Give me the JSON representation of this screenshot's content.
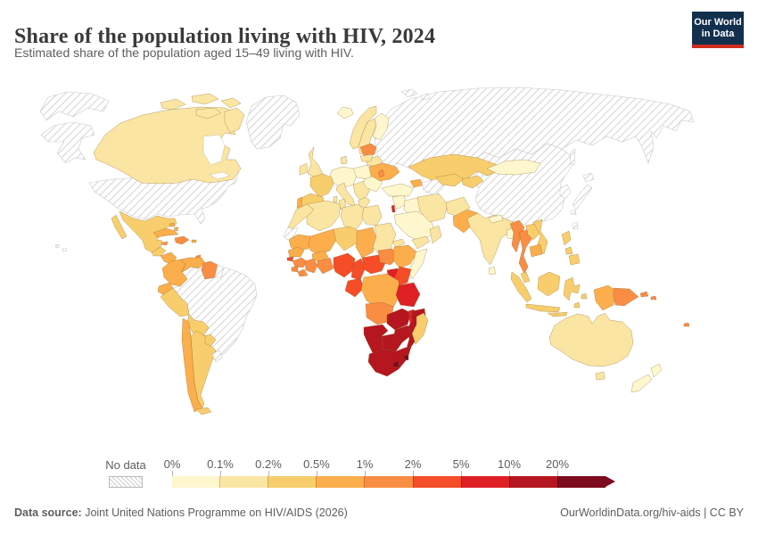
{
  "header": {
    "title": "Share of the population living with HIV, 2024",
    "subtitle": "Estimated share of the population aged 15–49 living with HIV."
  },
  "logo": {
    "line1": "Our World",
    "line2": "in Data",
    "bg": "#12304e",
    "bar": "#d02b1f"
  },
  "legend": {
    "no_data_label": "No data",
    "tick_labels": [
      "0%",
      "0.1%",
      "0.2%",
      "0.5%",
      "1%",
      "2%",
      "5%",
      "10%",
      "20%"
    ]
  },
  "footer": {
    "source_label": "Data source:",
    "source_text": " Joint United Nations Programme on HIV/AIDS (2026)",
    "right_text": "OurWorldinData.org/hiv-aids | CC BY"
  },
  "chart_data": {
    "type": "heatmap",
    "subtype": "world-choropleth-map",
    "title": "Share of the population living with HIV, 2024",
    "unit": "% of population aged 15-49",
    "legend_position": "bottom",
    "bin_edges_labels": [
      "0%",
      "0.1%",
      "0.2%",
      "0.5%",
      "1%",
      "2%",
      "5%",
      "10%",
      "20%"
    ],
    "bucket_ranges": {
      "b0": "0–0.1%",
      "b1": "0.1–0.2%",
      "b2": "0.2–0.5%",
      "b3": "0.5–1%",
      "b4": "1–2%",
      "b5": "2–5%",
      "b6": "5–10%",
      "b7": "10–20%",
      "b8": "≥20%",
      "no_data": "No data"
    },
    "bucket_colors": {
      "b0": "#FEF7CE",
      "b1": "#FAE5A2",
      "b2": "#F8CE6D",
      "b3": "#FBAE4B",
      "b4": "#F98D44",
      "b5": "#F44D28",
      "b6": "#DE2025",
      "b7": "#B5161F",
      "b8": "#7D0A1D"
    },
    "regions": {
      "chukotka": "no_data",
      "alaska": "no_data",
      "usa": "no_data",
      "greenland": "no_data",
      "russia": "no_data",
      "svalbard": "no_data",
      "hawaii": "no_data",
      "western-sahara": "no_data",
      "french-guiana": "no_data",
      "uruguay": "no_data",
      "turkmenistan": "no_data",
      "china": "no_data",
      "korea": "no_data",
      "japan": "no_data",
      "sakhalin": "no_data",
      "taiwan": "no_data",
      "iceland": "b0",
      "finland": "b0",
      "germany-central": "b0",
      "poland": "b0",
      "romania-bulgaria": "b0",
      "turkey": "b0",
      "syria-levant": "b0",
      "iraq": "b0",
      "saudi": "b0",
      "mongolia": "b0",
      "nepal": "b0",
      "bangladesh": "b0",
      "sri-lanka": "b0",
      "somalia": "b0",
      "nz": "b0",
      "canada": "b1",
      "arctic-islands": "b1",
      "uk": "b1",
      "ireland": "b1",
      "norway": "b1",
      "sweden": "b1",
      "denmark": "b1",
      "belarus": "b1",
      "lithuania": "b1",
      "italy": "b1",
      "balkans": "b1",
      "greece": "b1",
      "iran": "b1",
      "afghanistan": "b1",
      "yemen": "b1",
      "oman": "b1",
      "morocco": "b1",
      "algeria": "b1",
      "tunisia": "b1",
      "libya": "b1",
      "egypt": "b1",
      "sudan": "b1",
      "eritrea": "b1",
      "india": "b1",
      "australia": "b1",
      "tasmania": "b1",
      "mexico": "b2",
      "guatemala-belize": "b2",
      "peru": "b2",
      "bolivia": "b2",
      "paraguay": "b2",
      "argentina": "b2",
      "france": "b2",
      "iberia": "b2",
      "kazakhstan": "b2",
      "uzbekistan": "b2",
      "kyrgyz-tajik": "b2",
      "niger": "b2",
      "vietnam": "b2",
      "laos": "b2",
      "malaysia-pen": "b2",
      "sumatra": "b2",
      "java": "b2",
      "borneo": "b2",
      "sulawesi": "b2",
      "lesser-sunda": "b2",
      "philippines": "b2",
      "madagascar": "b2",
      "colombia": "b3",
      "venezuela": "b3",
      "cuba": "b3",
      "bahamas": "b3",
      "puerto-rico": "b3",
      "ecuador": "b3",
      "chile": "b3",
      "honduras-nicaragua": "b3",
      "portugal": "b3",
      "ukraine": "b3",
      "azerbaijan": "b3",
      "pakistan": "b3",
      "mauritania": "b3",
      "mali": "b3",
      "chad": "b3",
      "senegal": "b3",
      "burkina": "b3",
      "ethiopia": "b3",
      "drc": "b3",
      "cambodia": "b3",
      "west-new-guinea": "b3",
      "hispaniola": "b4",
      "jamaica": "b4",
      "trinidad": "b4",
      "guyana-suriname": "b4",
      "baltics": "b4",
      "moldova": "b4",
      "guinea": "b4",
      "sierra-leone": "b4",
      "liberia": "b4",
      "cote-divoire": "b4",
      "ghana-togo-benin": "b4",
      "south-sudan": "b4",
      "angola": "b4",
      "myanmar": "b4",
      "thailand": "b4",
      "png": "b4",
      "fiji": "b4",
      "solomon": "b4",
      "costa-panama": "b4",
      "nigeria": "b5",
      "cameroon": "b5",
      "car": "b5",
      "congo-gabon": "b5",
      "kenya": "b5",
      "rwanda-burundi": "b5",
      "guinea-bissau": "b5",
      "uganda": "b6",
      "tanzania": "b6",
      "malawi": "b6",
      "israel": "b6",
      "zambia": "b7",
      "zimbabwe": "b7",
      "mozambique": "b7",
      "namibia": "b7",
      "botswana": "b7",
      "south-africa": "b7",
      "lesotho": "b8",
      "eswatini": "b8"
    }
  }
}
